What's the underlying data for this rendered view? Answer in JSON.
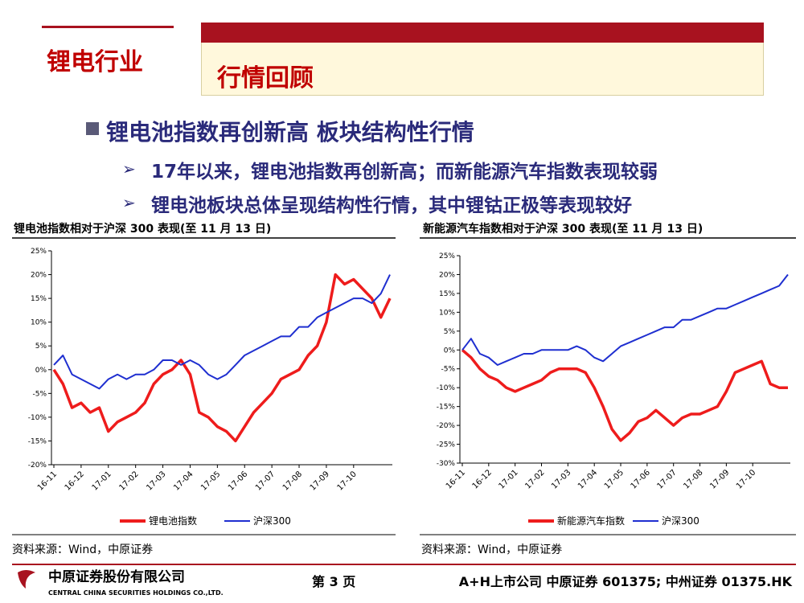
{
  "header": {
    "section": "锂电行业",
    "title": "行情回顾"
  },
  "bullets": {
    "main": "锂电池指数再创新高 板块结构性行情",
    "sub": [
      "17年以来，锂电池指数再创新高；而新能源汽车指数表现较弱",
      "锂电池板块总体呈现结构性行情，其中锂钴正极等表现较好"
    ]
  },
  "sources": [
    "资料来源：Wind，中原证券",
    "资料来源：Wind，中原证券"
  ],
  "footer": {
    "company": "中原证券股份有限公司",
    "company_en": "CENTRAL CHINA SECURITIES HOLDINGS CO.,LTD.",
    "page": "第 3 页",
    "listing": "A+H上市公司 中原证券 601375; 中州证券 01375.HK"
  },
  "chart_data": [
    {
      "type": "line",
      "title": "锂电池指数相对于沪深 300 表现(至 11 月 13 日)",
      "categories": [
        "16-11",
        null,
        null,
        "16-12",
        null,
        null,
        "17-01",
        null,
        null,
        "17-02",
        null,
        null,
        "17-03",
        null,
        null,
        "17-04",
        null,
        null,
        "17-05",
        null,
        null,
        "17-06",
        null,
        null,
        "17-07",
        null,
        null,
        "17-08",
        null,
        null,
        "17-09",
        null,
        null,
        "17-10",
        null,
        null,
        null,
        null
      ],
      "series": [
        {
          "name": "锂电池指数",
          "color": "#ee1c1c",
          "values": [
            0,
            -3,
            -8,
            -7,
            -9,
            -8,
            -13,
            -11,
            -10,
            -9,
            -7,
            -3,
            -1,
            0,
            2,
            -1,
            -9,
            -10,
            -12,
            -13,
            -15,
            -12,
            -9,
            -7,
            -5,
            -2,
            -1,
            0,
            3,
            5,
            10,
            20,
            18,
            19,
            17,
            15,
            11,
            15
          ]
        },
        {
          "name": "沪深300",
          "color": "#1f2fd0",
          "values": [
            1,
            3,
            -1,
            -2,
            -3,
            -4,
            -2,
            -1,
            -2,
            -1,
            -1,
            0,
            2,
            2,
            1,
            2,
            1,
            -1,
            -2,
            -1,
            1,
            3,
            4,
            5,
            6,
            7,
            7,
            9,
            9,
            11,
            12,
            13,
            14,
            15,
            15,
            14,
            16,
            20
          ]
        }
      ],
      "ylim": [
        -20,
        25
      ],
      "yticks": [
        {
          "value": -20,
          "label": "-20%"
        },
        {
          "value": -15,
          "label": "-15%"
        },
        {
          "value": -10,
          "label": "-10%"
        },
        {
          "value": -5,
          "label": "-5%"
        },
        {
          "value": 0,
          "label": "0%"
        },
        {
          "value": 5,
          "label": "5%"
        },
        {
          "value": 10,
          "label": "10%"
        },
        {
          "value": 15,
          "label": "15%"
        },
        {
          "value": 20,
          "label": "20%"
        },
        {
          "value": 25,
          "label": "25%"
        }
      ],
      "legend": "bottom"
    },
    {
      "type": "line",
      "title": "新能源汽车指数相对于沪深 300 表现(至 11 月 13 日)",
      "categories": [
        "16-11",
        null,
        null,
        "16-12",
        null,
        null,
        "17-01",
        null,
        null,
        "17-02",
        null,
        null,
        "17-03",
        null,
        null,
        "17-04",
        null,
        null,
        "17-05",
        null,
        null,
        "17-06",
        null,
        null,
        "17-07",
        null,
        null,
        "17-08",
        null,
        null,
        "17-09",
        null,
        null,
        "17-10",
        null,
        null,
        null,
        null
      ],
      "series": [
        {
          "name": "新能源汽车指数",
          "color": "#ee1c1c",
          "values": [
            0,
            -2,
            -5,
            -7,
            -8,
            -10,
            -11,
            -10,
            -9,
            -8,
            -6,
            -5,
            -5,
            -5,
            -6,
            -10,
            -15,
            -21,
            -24,
            -22,
            -19,
            -18,
            -16,
            -18,
            -20,
            -18,
            -17,
            -17,
            -16,
            -15,
            -11,
            -6,
            -5,
            -4,
            -3,
            -9,
            -10,
            -10
          ]
        },
        {
          "name": "沪深300",
          "color": "#1f2fd0",
          "values": [
            0,
            3,
            -1,
            -2,
            -4,
            -3,
            -2,
            -1,
            -1,
            0,
            0,
            0,
            0,
            1,
            0,
            -2,
            -3,
            -1,
            1,
            2,
            3,
            4,
            5,
            6,
            6,
            8,
            8,
            9,
            10,
            11,
            11,
            12,
            13,
            14,
            15,
            16,
            17,
            20
          ]
        }
      ],
      "ylim": [
        -30,
        25
      ],
      "yticks": [
        {
          "value": -30,
          "label": "-30%"
        },
        {
          "value": -25,
          "label": "-25%"
        },
        {
          "value": -20,
          "label": "-20%"
        },
        {
          "value": -15,
          "label": "-15%"
        },
        {
          "value": -10,
          "label": "-10%"
        },
        {
          "value": -5,
          "label": "-5%"
        },
        {
          "value": 0,
          "label": "0%"
        },
        {
          "value": 5,
          "label": "5%"
        },
        {
          "value": 10,
          "label": "10%"
        },
        {
          "value": 15,
          "label": "15%"
        },
        {
          "value": 20,
          "label": "20%"
        },
        {
          "value": 25,
          "label": "25%"
        }
      ],
      "legend": "bottom"
    }
  ]
}
